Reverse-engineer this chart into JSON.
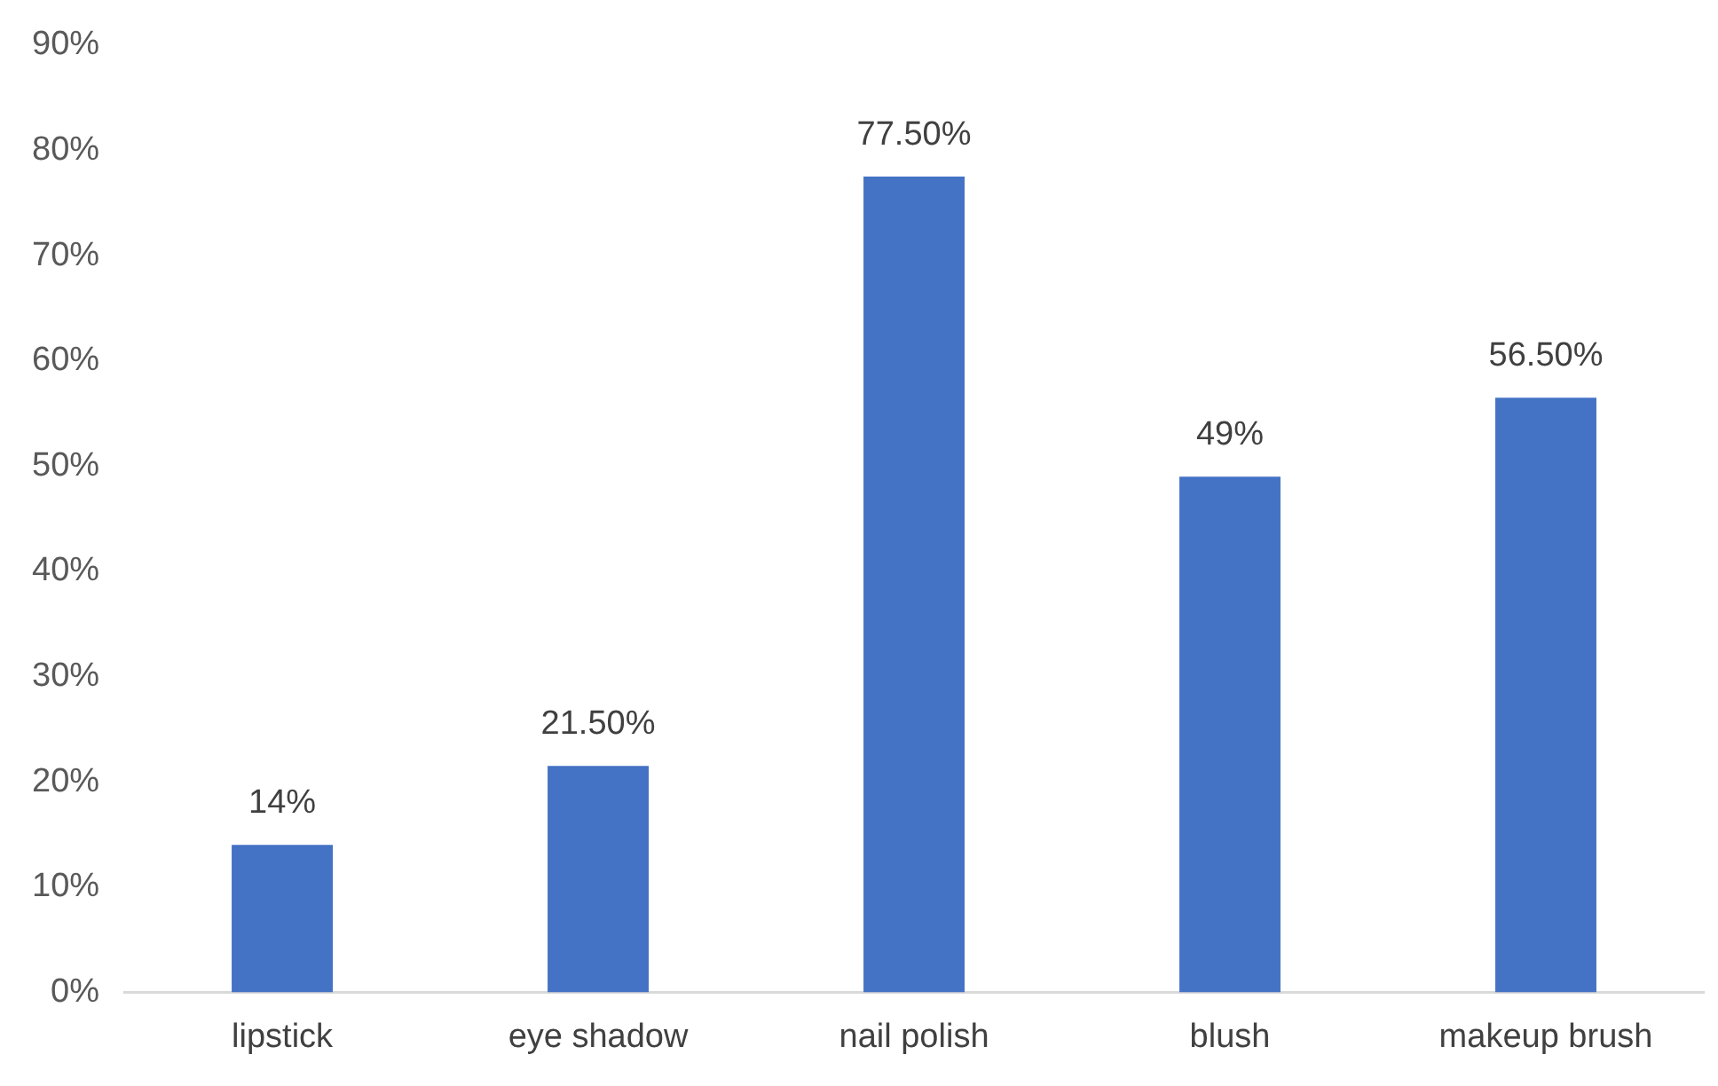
{
  "chart_data": {
    "type": "bar",
    "categories": [
      "lipstick",
      "eye shadow",
      "nail polish",
      "blush",
      "makeup brush"
    ],
    "values": [
      14,
      21.5,
      77.5,
      49,
      56.5
    ],
    "value_labels": [
      "14%",
      "21.50%",
      "77.50%",
      "49%",
      "56.50%"
    ],
    "color": "#4472c4",
    "ylim": [
      0,
      90
    ],
    "yticks": [
      {
        "value": 0,
        "label": "0%"
      },
      {
        "value": 10,
        "label": "10%"
      },
      {
        "value": 20,
        "label": "20%"
      },
      {
        "value": 30,
        "label": "30%"
      },
      {
        "value": 40,
        "label": "40%"
      },
      {
        "value": 50,
        "label": "50%"
      },
      {
        "value": 60,
        "label": "60%"
      },
      {
        "value": 70,
        "label": "70%"
      },
      {
        "value": 80,
        "label": "80%"
      },
      {
        "value": 90,
        "label": "90%"
      }
    ],
    "grid": false,
    "legend": false
  }
}
